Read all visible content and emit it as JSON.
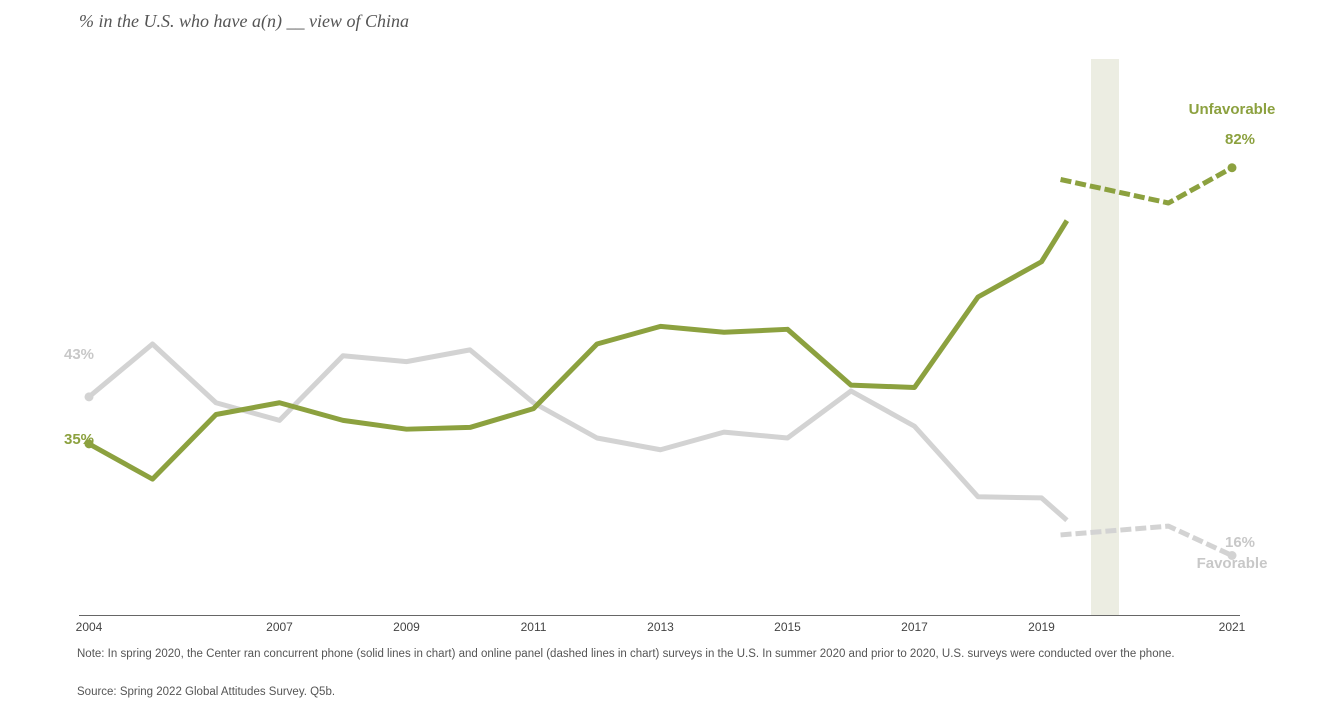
{
  "chart_data": {
    "type": "line",
    "subtitle": "% in the U.S. who have a(n) __ view of China",
    "x_tick_labels": [
      "2004",
      "2007",
      "2009",
      "2011",
      "2013",
      "2015",
      "2017",
      "2019",
      "2021"
    ],
    "ylim": [
      0,
      100
    ],
    "grid": false,
    "highlight_band_year": 2020,
    "series": [
      {
        "name": "Unfavorable",
        "color": "#8ca13f",
        "phone": {
          "x": [
            2004,
            2005,
            2006,
            2007,
            2008,
            2009,
            2010,
            2011,
            2012,
            2013,
            2014,
            2015,
            2016,
            2017,
            2018,
            2019,
            2020
          ],
          "y": [
            35,
            29,
            40,
            42,
            39,
            37.5,
            37.8,
            41,
            52,
            55,
            54,
            54.5,
            45,
            44.6,
            60,
            66,
            73
          ]
        },
        "online": {
          "x": [
            2020,
            2021,
            2022
          ],
          "y": [
            80,
            76,
            82
          ]
        },
        "start_label": "35%",
        "end_label": "82%"
      },
      {
        "name": "Favorable",
        "color": "#d3d3d3",
        "phone": {
          "x": [
            2004,
            2005,
            2006,
            2007,
            2008,
            2009,
            2010,
            2011,
            2012,
            2013,
            2014,
            2015,
            2016,
            2017,
            2018,
            2019,
            2020
          ],
          "y": [
            43,
            52,
            42,
            39,
            50,
            49,
            51,
            42,
            36,
            34,
            37,
            36,
            44,
            38,
            26,
            25.8,
            22
          ]
        },
        "online": {
          "x": [
            2020,
            2021,
            2022
          ],
          "y": [
            19.5,
            21,
            16
          ]
        },
        "start_label": "43%",
        "end_label": "16%"
      }
    ],
    "note": "Note: In spring 2020, the Center ran concurrent phone (solid lines in chart) and online panel (dashed lines in chart) surveys in the U.S. In summer 2020 and prior to 2020, U.S. surveys were conducted over the phone.",
    "source": "Source: Spring 2022 Global Attitudes Survey. Q5b."
  }
}
